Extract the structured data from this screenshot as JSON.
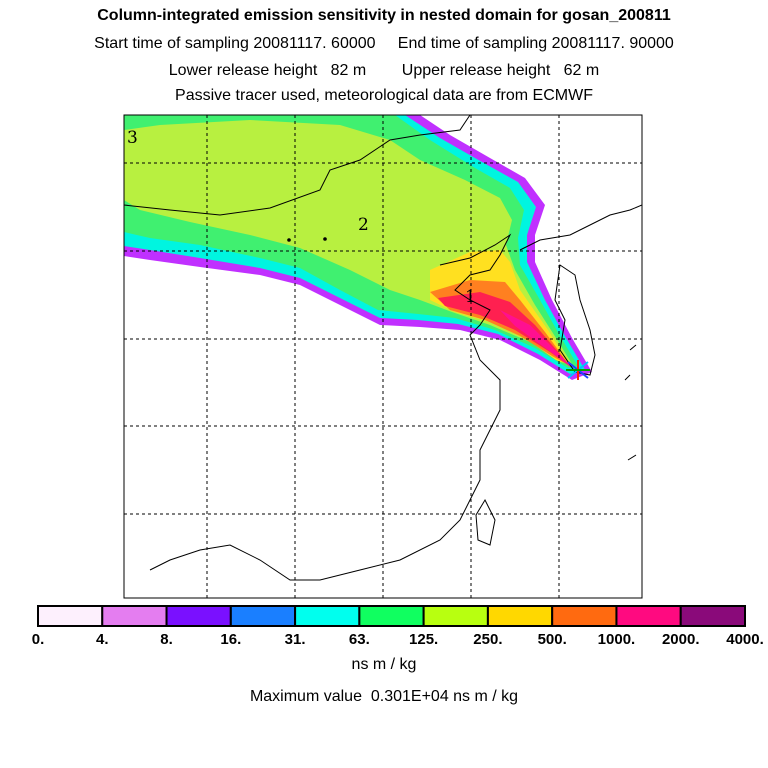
{
  "header": {
    "title": "Column-integrated emission sensitivity in nested domain for gosan_200811",
    "start": "Start time of sampling 20081117. 60000",
    "end": "End time of sampling 20081117. 90000",
    "lower": "Lower release height   82 m",
    "upper": "Upper release height   62 m",
    "info": "Passive tracer used, meteorological data are from ECMWF"
  },
  "map": {
    "labels": [
      "1",
      "2",
      "3"
    ],
    "receptor_icon": "star-marker-icon"
  },
  "colorbar": {
    "ticks": [
      "0.",
      "4.",
      "8.",
      "16.",
      "31.",
      "63.",
      "125.",
      "250.",
      "500.",
      "1000.",
      "2000.",
      "4000."
    ],
    "colors": [
      "#fdf0fd",
      "#e47df0",
      "#7a10ff",
      "#1a7fff",
      "#00ffee",
      "#10ff60",
      "#b8ff10",
      "#ffd800",
      "#ff6a10",
      "#ff0a80",
      "#8a0a7a"
    ],
    "unit": "ns m / kg",
    "max_value": "Maximum value  0.301E+04 ns m / kg"
  }
}
